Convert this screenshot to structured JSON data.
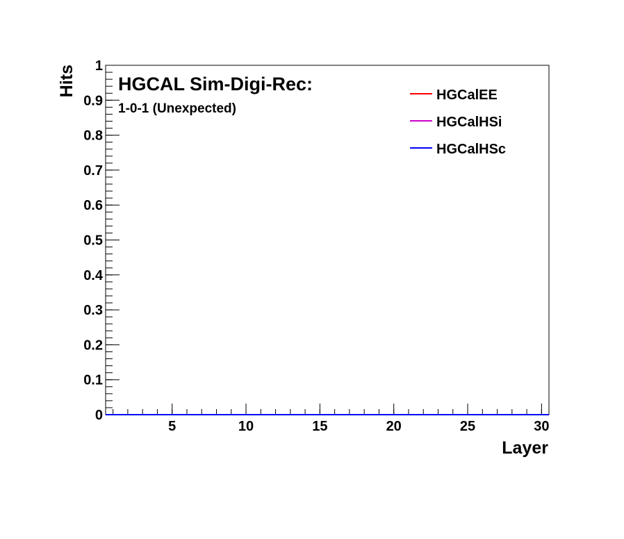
{
  "chart_data": {
    "type": "line",
    "title": "HGCAL Sim-Digi-Rec:",
    "subtitle": "1-0-1 (Unexpected)",
    "xlabel": "Layer",
    "ylabel": "Hits",
    "xlim": [
      0.5,
      30.5
    ],
    "ylim": [
      0,
      1
    ],
    "x_ticks": [
      5,
      10,
      15,
      20,
      25,
      30
    ],
    "x_tick_labels": [
      "5",
      "10",
      "15",
      "20",
      "25",
      "30"
    ],
    "y_ticks": [
      0,
      0.1,
      0.2,
      0.3,
      0.4,
      0.5,
      0.6,
      0.7,
      0.8,
      0.9,
      1
    ],
    "y_tick_labels": [
      "0",
      "0.1",
      "0.2",
      "0.3",
      "0.4",
      "0.5",
      "0.6",
      "0.7",
      "0.8",
      "0.9",
      "1"
    ],
    "grid": false,
    "legend_position": "top-right",
    "series": [
      {
        "name": "HGCalEE",
        "color": "#ff0000",
        "x": [
          1,
          30
        ],
        "values": [
          0,
          0
        ]
      },
      {
        "name": "HGCalHSi",
        "color": "#cc00cc",
        "x": [
          1,
          30
        ],
        "values": [
          0,
          0
        ]
      },
      {
        "name": "HGCalHSc",
        "color": "#0000ff",
        "x": [
          1,
          30
        ],
        "values": [
          0,
          0
        ]
      }
    ]
  }
}
